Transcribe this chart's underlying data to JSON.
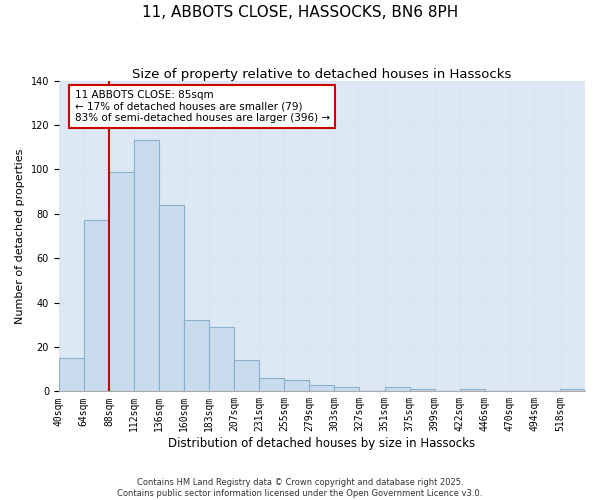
{
  "title": "11, ABBOTS CLOSE, HASSOCKS, BN6 8PH",
  "subtitle": "Size of property relative to detached houses in Hassocks",
  "xlabel": "Distribution of detached houses by size in Hassocks",
  "ylabel": "Number of detached properties",
  "bin_labels": [
    "40sqm",
    "64sqm",
    "88sqm",
    "112sqm",
    "136sqm",
    "160sqm",
    "183sqm",
    "207sqm",
    "231sqm",
    "255sqm",
    "279sqm",
    "303sqm",
    "327sqm",
    "351sqm",
    "375sqm",
    "399sqm",
    "422sqm",
    "446sqm",
    "470sqm",
    "494sqm",
    "518sqm"
  ],
  "bar_values": [
    15,
    77,
    99,
    113,
    84,
    32,
    29,
    14,
    6,
    5,
    3,
    2,
    0,
    2,
    1,
    0,
    1,
    0,
    0,
    0,
    1
  ],
  "bar_color": "#c8dced",
  "bar_edge_color": "#8ab0cc",
  "grid_color": "#d8e4f0",
  "bg_color": "#dce8f4",
  "vline_color": "#cc0000",
  "annotation_text": "11 ABBOTS CLOSE: 85sqm\n← 17% of detached houses are smaller (79)\n83% of semi-detached houses are larger (396) →",
  "annotation_box_color": "#cc0000",
  "ylim": [
    0,
    140
  ],
  "yticks": [
    0,
    20,
    40,
    60,
    80,
    100,
    120,
    140
  ],
  "footnote": "Contains HM Land Registry data © Crown copyright and database right 2025.\nContains public sector information licensed under the Open Government Licence v3.0.",
  "title_fontsize": 11,
  "subtitle_fontsize": 9.5,
  "xlabel_fontsize": 8.5,
  "ylabel_fontsize": 8,
  "tick_fontsize": 7,
  "annot_fontsize": 7.5
}
